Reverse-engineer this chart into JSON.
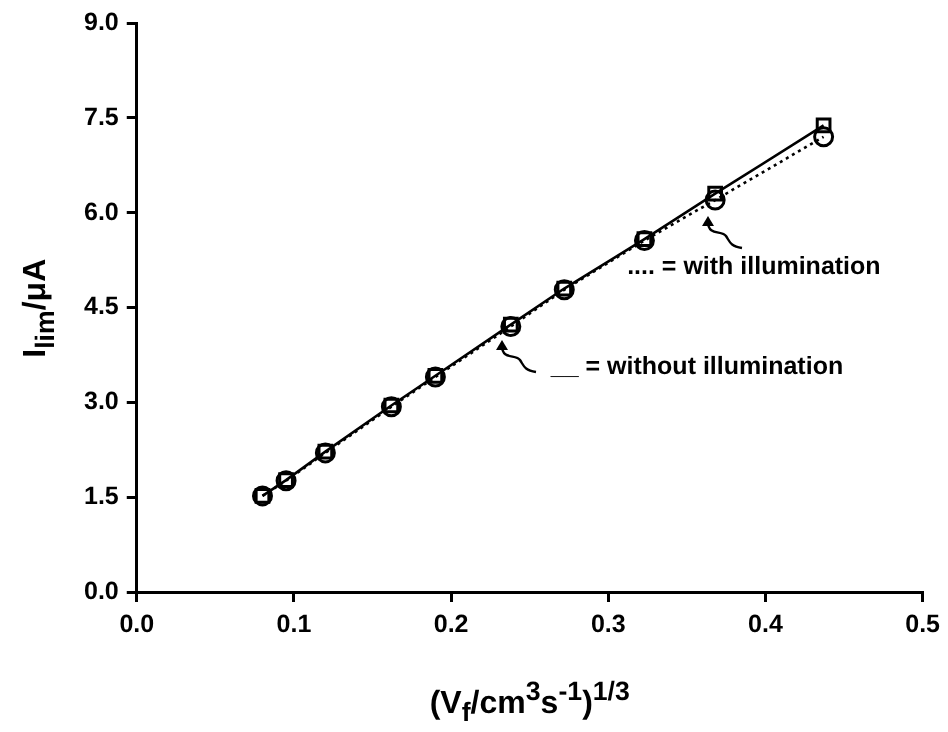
{
  "chart_data": {
    "type": "line",
    "xlabel": "(V$_{f}$/cm$^{3}$s$^{-1}$)$^{1/3}$",
    "ylabel": "I$_{lim}$/μA",
    "x": [
      0.08,
      0.095,
      0.12,
      0.162,
      0.19,
      0.238,
      0.272,
      0.323,
      0.368,
      0.437
    ],
    "series": [
      {
        "color": "#000000",
        "marker": "square",
        "line_style": "solid",
        "values": [
          1.52,
          1.77,
          2.22,
          2.95,
          3.42,
          4.23,
          4.8,
          5.58,
          6.3,
          7.38
        ]
      },
      {
        "color": "#000000",
        "marker": "circle",
        "line_style": "dotted",
        "values": [
          1.52,
          1.76,
          2.2,
          2.93,
          3.4,
          4.2,
          4.78,
          5.56,
          6.2,
          7.2
        ]
      }
    ],
    "xlim": [
      0,
      0.5
    ],
    "xticks": [
      {
        "value": 0,
        "label": "0.0"
      },
      {
        "value": 0.1,
        "label": "0.1"
      },
      {
        "value": 0.2,
        "label": "0.2"
      },
      {
        "value": 0.3,
        "label": "0.3"
      },
      {
        "value": 0.4,
        "label": "0.4"
      },
      {
        "value": 0.5,
        "label": "0.5"
      }
    ],
    "ylim": [
      0,
      9
    ],
    "yticks": [
      {
        "value": 0,
        "label": "0.0"
      },
      {
        "value": 1.5,
        "label": "1.5"
      },
      {
        "value": 3,
        "label": "3.0"
      },
      {
        "value": 4.5,
        "label": "4.5"
      },
      {
        "value": 6,
        "label": "6.0"
      },
      {
        "value": 7.5,
        "label": "7.5"
      },
      {
        "value": 9,
        "label": "9.0"
      }
    ],
    "grid": false,
    "legend": false,
    "annotations": [
      {
        "text": ".... = with illumination",
        "x": 0.368,
        "y": 6.2
      },
      {
        "text": "__ = without illumination",
        "x": 0.238,
        "y": 4.23
      }
    ]
  }
}
